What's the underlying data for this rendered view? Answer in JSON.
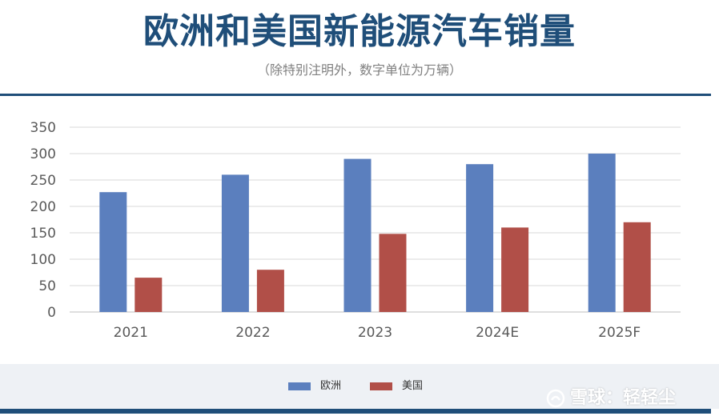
{
  "header": {
    "title": "欧洲和美国新能源汽车销量",
    "subtitle": "（除特别注明外，数字单位为万辆）"
  },
  "colors": {
    "accent": "#1f4e79",
    "europe": "#5b7fbe",
    "usa": "#b14f48",
    "grid": "#d9d9d9",
    "axis_text": "#595959"
  },
  "chart_data": {
    "type": "bar",
    "categories": [
      "2021",
      "2022",
      "2023",
      "2024E",
      "2025F"
    ],
    "series": [
      {
        "name": "欧洲",
        "values": [
          227,
          260,
          290,
          280,
          300
        ]
      },
      {
        "name": "美国",
        "values": [
          65,
          80,
          148,
          160,
          170
        ]
      }
    ],
    "ylim": [
      0,
      350
    ],
    "yticks": [
      0,
      50,
      100,
      150,
      200,
      250,
      300,
      350
    ],
    "grid": true,
    "legend": "bottom-center"
  },
  "watermark": {
    "text": "雪球：轻轻尘",
    "logo": "xueqiu-logo-icon"
  }
}
